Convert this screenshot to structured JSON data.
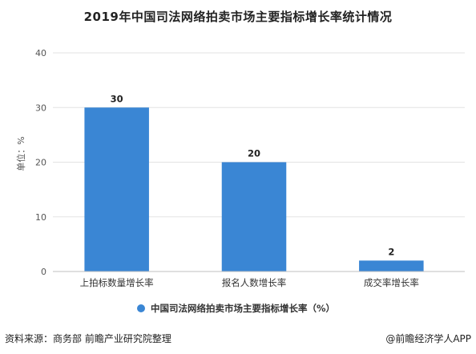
{
  "chart_data": {
    "type": "bar",
    "title": "2019年中国司法网络拍卖市场主要指标增长率统计情况",
    "ylabel": "单位：%",
    "xlabel": "",
    "categories": [
      "上拍标数量增长率",
      "报名人数增长率",
      "成交率增长率"
    ],
    "series": [
      {
        "name": "中国司法网络拍卖市场主要指标增长率（%）",
        "values": [
          30,
          20,
          2
        ]
      }
    ],
    "ylim": [
      0,
      40
    ],
    "yticks": [
      0,
      10,
      20,
      30,
      40
    ],
    "grid": true,
    "legend_position": "bottom",
    "data_labels": true,
    "bar_color": "#3a86d4"
  },
  "footer": {
    "source": "资料来源：商务部 前瞻产业研究院整理",
    "credit": "@前瞻经济学人APP"
  }
}
